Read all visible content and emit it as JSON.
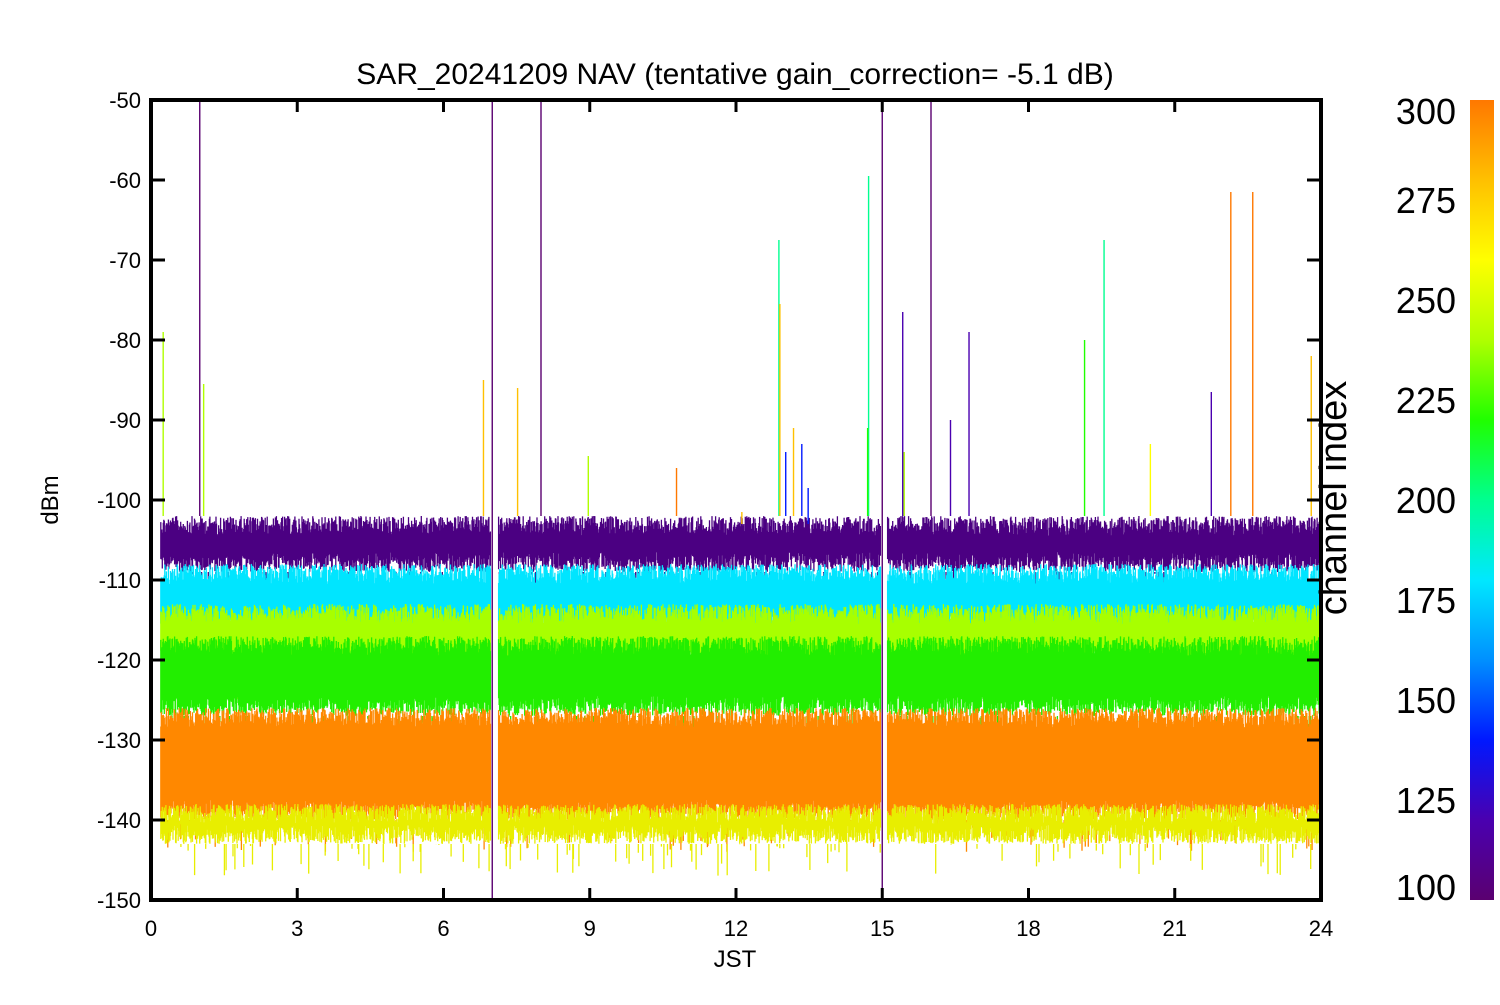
{
  "chart_data": {
    "type": "line",
    "title": "SAR_20241209 NAV (tentative gain_correction= -5.1 dB)",
    "xlabel": "JST",
    "ylabel": "dBm",
    "xlim": [
      0,
      24
    ],
    "ylim": [
      -150,
      -50
    ],
    "x_ticks": [
      "0",
      "3",
      "6",
      "9",
      "12",
      "15",
      "18",
      "21",
      "24"
    ],
    "y_ticks": [
      "-50",
      "-60",
      "-70",
      "-80",
      "-90",
      "-100",
      "-110",
      "-120",
      "-130",
      "-140",
      "-150"
    ],
    "grid": false,
    "data_gaps_jst": [
      [
        6.97,
        7.12
      ],
      [
        14.97,
        15.1
      ]
    ],
    "colorbar": {
      "label": "channel index",
      "range": [
        100,
        300
      ],
      "ticks": [
        "300",
        "275",
        "250",
        "225",
        "200",
        "175",
        "150",
        "125",
        "100"
      ],
      "colormap": "rainbow",
      "colors": [
        "#5a0070",
        "#4a00b0",
        "#0018ff",
        "#0090ff",
        "#00e8ff",
        "#00ff90",
        "#20ff00",
        "#b0ff00",
        "#ffff00",
        "#ffc000",
        "#ff7800"
      ]
    },
    "series": [
      {
        "channel_index": 105,
        "color": "#4b0082",
        "level_min": -109,
        "level_max": -102
      },
      {
        "channel_index": 170,
        "color": "#00e5ff",
        "level_min": -117,
        "level_max": -108
      },
      {
        "channel_index": 240,
        "color": "#a8ff00",
        "level_min": -121,
        "level_max": -113
      },
      {
        "channel_index": 225,
        "color": "#22ee00",
        "level_min": -127,
        "level_max": -117
      },
      {
        "channel_index": 290,
        "color": "#ff8800",
        "level_min": -140,
        "level_max": -126
      },
      {
        "channel_index": 270,
        "color": "#e8ee00",
        "level_min": -143,
        "level_max": -138
      }
    ],
    "spikes": [
      {
        "x": 1.0,
        "y_top": -50,
        "y_bottom": -102,
        "channel_index": 105
      },
      {
        "x": 0.25,
        "y_top": -79,
        "y_bottom": -102,
        "channel_index": 235
      },
      {
        "x": 1.08,
        "y_top": -85.5,
        "y_bottom": -102,
        "channel_index": 240
      },
      {
        "x": 6.82,
        "y_top": -85,
        "y_bottom": -102,
        "channel_index": 285
      },
      {
        "x": 7.0,
        "y_top": -50,
        "y_bottom": -150,
        "channel_index": 105
      },
      {
        "x": 7.52,
        "y_top": -86,
        "y_bottom": -102,
        "channel_index": 285
      },
      {
        "x": 8.0,
        "y_top": -50,
        "y_bottom": -102,
        "channel_index": 105
      },
      {
        "x": 8.97,
        "y_top": -94.5,
        "y_bottom": -102,
        "channel_index": 235
      },
      {
        "x": 10.78,
        "y_top": -96,
        "y_bottom": -102,
        "channel_index": 290
      },
      {
        "x": 12.12,
        "y_top": -101.5,
        "y_bottom": -103,
        "channel_index": 270
      },
      {
        "x": 12.88,
        "y_top": -67.5,
        "y_bottom": -102,
        "channel_index": 190
      },
      {
        "x": 12.9,
        "y_top": -75.5,
        "y_bottom": -102,
        "channel_index": 272
      },
      {
        "x": 13.02,
        "y_top": -94,
        "y_bottom": -102,
        "channel_index": 135
      },
      {
        "x": 13.18,
        "y_top": -91,
        "y_bottom": -102,
        "channel_index": 275
      },
      {
        "x": 13.35,
        "y_top": -93,
        "y_bottom": -102,
        "channel_index": 135
      },
      {
        "x": 13.48,
        "y_top": -98.5,
        "y_bottom": -103,
        "channel_index": 135
      },
      {
        "x": 14.72,
        "y_top": -59.5,
        "y_bottom": -102,
        "channel_index": 190
      },
      {
        "x": 14.7,
        "y_top": -91,
        "y_bottom": -102,
        "channel_index": 215
      },
      {
        "x": 15.0,
        "y_top": -50,
        "y_bottom": -150,
        "channel_index": 105
      },
      {
        "x": 15.42,
        "y_top": -76.5,
        "y_bottom": -102,
        "channel_index": 110
      },
      {
        "x": 15.45,
        "y_top": -94,
        "y_bottom": -102,
        "channel_index": 235
      },
      {
        "x": 16.0,
        "y_top": -50,
        "y_bottom": -102,
        "channel_index": 105
      },
      {
        "x": 16.4,
        "y_top": -90,
        "y_bottom": -102,
        "channel_index": 110
      },
      {
        "x": 16.78,
        "y_top": -79,
        "y_bottom": -102,
        "channel_index": 110
      },
      {
        "x": 19.15,
        "y_top": -80,
        "y_bottom": -102,
        "channel_index": 215
      },
      {
        "x": 19.55,
        "y_top": -67.5,
        "y_bottom": -102,
        "channel_index": 190
      },
      {
        "x": 20.5,
        "y_top": -93,
        "y_bottom": -102,
        "channel_index": 250
      },
      {
        "x": 21.75,
        "y_top": -86.5,
        "y_bottom": -102,
        "channel_index": 125
      },
      {
        "x": 22.15,
        "y_top": -61.5,
        "y_bottom": -102,
        "channel_index": 290
      },
      {
        "x": 22.6,
        "y_top": -61.5,
        "y_bottom": -102,
        "channel_index": 290
      },
      {
        "x": 23.8,
        "y_top": -82,
        "y_bottom": -102,
        "channel_index": 270
      },
      {
        "x": 24.0,
        "y_top": -150,
        "y_bottom": -150,
        "channel_index": 290
      }
    ],
    "legend": "colorbar-right"
  }
}
